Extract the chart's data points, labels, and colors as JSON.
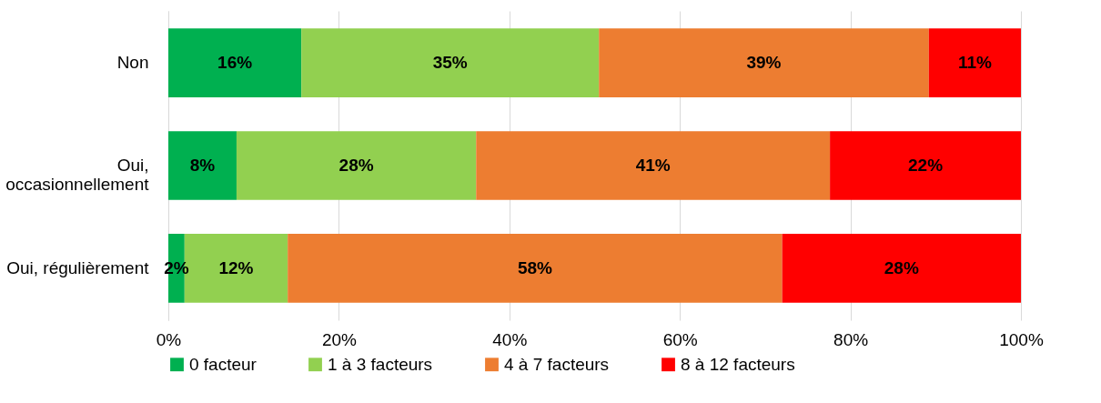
{
  "chart_data": {
    "type": "bar",
    "orientation": "horizontal",
    "stacked": true,
    "categories": [
      "Non",
      "Oui, occasionnellement",
      "Oui, régulièrement"
    ],
    "series": [
      {
        "name": "0 facteur",
        "color": "#00b050",
        "values": [
          15.6,
          8.0,
          1.9
        ],
        "value_labels": [
          "16%",
          "8%",
          "2%"
        ]
      },
      {
        "name": "1 à 3 facteurs",
        "color": "#92d050",
        "values": [
          34.9,
          28.1,
          12.1
        ],
        "value_labels": [
          "35%",
          "28%",
          "12%"
        ]
      },
      {
        "name": "4 à 7 facteurs",
        "color": "#ed7d31",
        "values": [
          38.7,
          41.5,
          58.0
        ],
        "value_labels": [
          "39%",
          "41%",
          "58%"
        ]
      },
      {
        "name": "8 à 12 facteurs",
        "color": "#ff0000",
        "values": [
          10.8,
          22.4,
          28.0
        ],
        "value_labels": [
          "11%",
          "22%",
          "28%"
        ]
      }
    ],
    "xlim": [
      0,
      100
    ],
    "xticks": [
      {
        "value": 0,
        "label": "0%"
      },
      {
        "value": 20,
        "label": "20%"
      },
      {
        "value": 40,
        "label": "40%"
      },
      {
        "value": 60,
        "label": "60%"
      },
      {
        "value": 80,
        "label": "80%"
      },
      {
        "value": 100,
        "label": "100%"
      }
    ],
    "grid": "x",
    "legend": "bottom"
  }
}
